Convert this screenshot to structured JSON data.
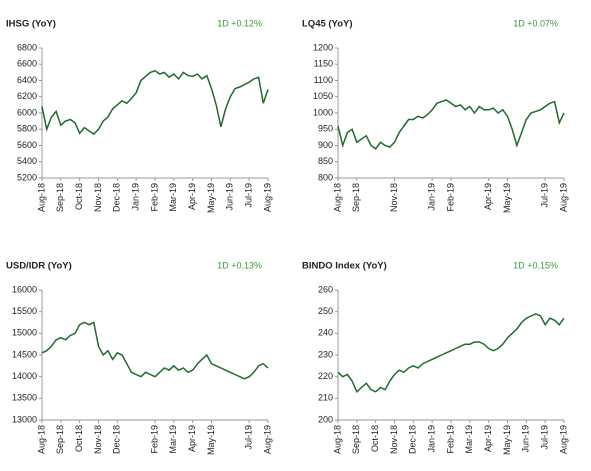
{
  "chart_data": [
    {
      "type": "line",
      "title": "IHSG (YoY)",
      "annotation": "1D +0.12%",
      "color": "#1f6b2b",
      "categories": [
        "Aug-18",
        null,
        null,
        null,
        "Sep-18",
        null,
        null,
        null,
        "Oct-18",
        null,
        null,
        null,
        "Nov-18",
        null,
        null,
        null,
        "Dec-18",
        null,
        null,
        null,
        "Jan-19",
        null,
        null,
        null,
        "Feb-19",
        null,
        null,
        null,
        "Mar-19",
        null,
        null,
        null,
        "Apr-19",
        null,
        null,
        null,
        "May-19",
        null,
        null,
        null,
        "Jun-19",
        null,
        null,
        null,
        "Jul-19",
        null,
        null,
        null,
        "Aug-19"
      ],
      "values": [
        6080,
        5800,
        5950,
        6020,
        5850,
        5900,
        5920,
        5880,
        5750,
        5820,
        5780,
        5740,
        5800,
        5900,
        5950,
        6050,
        6100,
        6150,
        6120,
        6180,
        6250,
        6400,
        6450,
        6500,
        6520,
        6480,
        6500,
        6440,
        6480,
        6420,
        6500,
        6460,
        6450,
        6480,
        6420,
        6460,
        6300,
        6100,
        5830,
        6050,
        6200,
        6300,
        6320,
        6350,
        6380,
        6420,
        6440,
        6120,
        6290
      ],
      "ylim": [
        5200,
        6800
      ],
      "yticks": [
        5200,
        5400,
        5600,
        5800,
        6000,
        6200,
        6400,
        6600,
        6800
      ]
    },
    {
      "type": "line",
      "title": "LQ45 (YoY)",
      "annotation": "1D +0.07%",
      "color": "#1f6b2b",
      "categories": [
        "Aug-18",
        null,
        null,
        null,
        "Sep-18",
        null,
        null,
        null,
        null,
        null,
        null,
        null,
        "Nov-18",
        null,
        null,
        null,
        null,
        null,
        null,
        null,
        "Jan-19",
        null,
        null,
        null,
        "Feb-19",
        null,
        null,
        null,
        null,
        null,
        null,
        null,
        "Apr-19",
        null,
        null,
        null,
        "May-19",
        null,
        null,
        null,
        null,
        null,
        null,
        null,
        "Jul-19",
        null,
        null,
        null,
        "Aug-19"
      ],
      "values": [
        960,
        900,
        940,
        950,
        910,
        920,
        930,
        900,
        890,
        910,
        900,
        895,
        910,
        940,
        960,
        980,
        980,
        990,
        985,
        995,
        1010,
        1030,
        1035,
        1040,
        1030,
        1020,
        1025,
        1010,
        1020,
        1000,
        1020,
        1010,
        1010,
        1015,
        1000,
        1010,
        990,
        950,
        900,
        940,
        980,
        1000,
        1005,
        1010,
        1020,
        1030,
        1035,
        970,
        1000
      ],
      "ylim": [
        800,
        1200
      ],
      "yticks": [
        800,
        850,
        900,
        950,
        1000,
        1050,
        1100,
        1150,
        1200
      ]
    },
    {
      "type": "line",
      "title": "USD/IDR  (YoY)",
      "annotation": "1D +0.13%",
      "color": "#1f6b2b",
      "categories": [
        "Aug-18",
        null,
        null,
        null,
        "Sep-18",
        null,
        null,
        null,
        "Oct-18",
        null,
        null,
        null,
        "Nov-18",
        null,
        null,
        null,
        "Dec-18",
        null,
        null,
        null,
        null,
        null,
        null,
        null,
        "Feb-19",
        null,
        null,
        null,
        "Mar-19",
        null,
        null,
        null,
        "Apr-19",
        null,
        null,
        null,
        "May-19",
        null,
        null,
        null,
        null,
        null,
        null,
        null,
        "Jul-19",
        null,
        null,
        null,
        "Aug-19"
      ],
      "values": [
        14550,
        14600,
        14700,
        14850,
        14900,
        14850,
        14950,
        15000,
        15200,
        15250,
        15200,
        15250,
        14700,
        14500,
        14600,
        14400,
        14550,
        14500,
        14300,
        14100,
        14050,
        14000,
        14100,
        14050,
        14000,
        14100,
        14200,
        14150,
        14250,
        14150,
        14200,
        14100,
        14150,
        14300,
        14400,
        14500,
        14300,
        14250,
        14200,
        14150,
        14100,
        14050,
        14000,
        13950,
        14000,
        14100,
        14250,
        14300,
        14200
      ],
      "ylim": [
        13000,
        16000
      ],
      "yticks": [
        13000,
        13500,
        14000,
        14500,
        15000,
        15500,
        16000
      ]
    },
    {
      "type": "line",
      "title": "BINDO Index (YoY)",
      "annotation": "1D +0.15%",
      "color": "#1f6b2b",
      "categories": [
        "Aug-18",
        null,
        null,
        null,
        "Sep-18",
        null,
        null,
        null,
        "Oct-18",
        null,
        null,
        null,
        "Nov-18",
        null,
        null,
        null,
        "Dec-18",
        null,
        null,
        null,
        "Jan-19",
        null,
        null,
        null,
        "Feb-19",
        null,
        null,
        null,
        "Mar-19",
        null,
        null,
        null,
        "Apr-19",
        null,
        null,
        null,
        "May-19",
        null,
        null,
        null,
        "Jun-19",
        null,
        null,
        null,
        "Jul-19",
        null,
        null,
        null,
        "Aug-19"
      ],
      "values": [
        222,
        220,
        221,
        218,
        213,
        215,
        217,
        214,
        213,
        215,
        214,
        218,
        221,
        223,
        222,
        224,
        225,
        224,
        226,
        227,
        228,
        229,
        230,
        231,
        232,
        233,
        234,
        235,
        235,
        236,
        236,
        235,
        233,
        232,
        233,
        235,
        238,
        240,
        242,
        245,
        247,
        248,
        249,
        248,
        244,
        247,
        246,
        244,
        247
      ],
      "ylim": [
        200,
        260
      ],
      "yticks": [
        200,
        210,
        220,
        230,
        240,
        250,
        260
      ]
    }
  ]
}
